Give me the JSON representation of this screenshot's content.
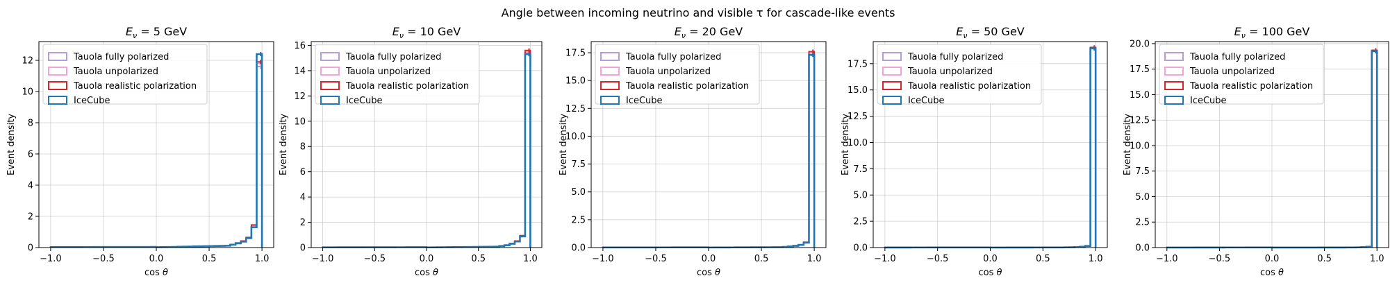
{
  "figure_title": "Angle between incoming neutrino and visible τ for cascade-like events",
  "colors": {
    "Tauola fully polarized": "#b39ddb",
    "Tauola unpolarized": "#f4a3d9",
    "Tauola realistic polarization": "#d62728",
    "IceCube": "#1f77b4"
  },
  "chart_data": [
    {
      "type": "histogram-step",
      "title_prefix": "E",
      "title_sub": "ν",
      "title_value": " = 5 GeV",
      "xlabel": "cos θ",
      "ylabel": "Event density",
      "xlim": [
        -1.0,
        1.0
      ],
      "ylim": [
        0,
        13.2
      ],
      "xticks": [
        -1.0,
        -0.5,
        0.0,
        0.5,
        1.0
      ],
      "xtick_labels": [
        "−1.0",
        "−0.5",
        "0.0",
        "0.5",
        "1.0"
      ],
      "yticks": [
        0,
        2,
        4,
        6,
        8,
        10,
        12
      ],
      "ytick_labels": [
        "0",
        "2",
        "4",
        "6",
        "8",
        "10",
        "12"
      ],
      "legend": [
        "Tauola fully polarized",
        "Tauola unpolarized",
        "Tauola realistic polarization",
        "IceCube"
      ],
      "bin_edges": [
        0.7,
        0.75,
        0.8,
        0.85,
        0.9,
        0.95,
        0.975,
        1.0
      ],
      "series": [
        {
          "name": "Tauola fully polarized",
          "values": [
            0.18,
            0.26,
            0.38,
            0.6,
            1.4,
            3.2,
            11.6
          ]
        },
        {
          "name": "Tauola unpolarized",
          "values": [
            0.2,
            0.28,
            0.4,
            0.62,
            1.35,
            3.1,
            11.8
          ]
        },
        {
          "name": "Tauola realistic polarization",
          "values": [
            0.2,
            0.3,
            0.42,
            0.65,
            1.45,
            3.35,
            11.9
          ]
        },
        {
          "name": "IceCube",
          "values": [
            0.18,
            0.27,
            0.38,
            0.6,
            1.3,
            2.9,
            12.4
          ]
        }
      ],
      "low_tail": 0.03,
      "mid_tail": 0.1
    },
    {
      "type": "histogram-step",
      "title_prefix": "E",
      "title_sub": "ν",
      "title_value": " = 10 GeV",
      "xlabel": "cos θ",
      "ylabel": "Event density",
      "xlim": [
        -1.0,
        1.0
      ],
      "ylim": [
        0,
        16.3
      ],
      "xticks": [
        -1.0,
        -0.5,
        0.0,
        0.5,
        1.0
      ],
      "xtick_labels": [
        "−1.0",
        "−0.5",
        "0.0",
        "0.5",
        "1.0"
      ],
      "yticks": [
        0,
        2,
        4,
        6,
        8,
        10,
        12,
        14,
        16
      ],
      "ytick_labels": [
        "0",
        "2",
        "4",
        "6",
        "8",
        "10",
        "12",
        "14",
        "16"
      ],
      "legend": [
        "Tauola fully polarized",
        "Tauola unpolarized",
        "Tauola realistic polarization",
        "IceCube"
      ],
      "bin_edges": [
        0.7,
        0.75,
        0.8,
        0.85,
        0.9,
        0.95,
        0.975,
        1.0
      ],
      "series": [
        {
          "name": "Tauola fully polarized",
          "values": [
            0.12,
            0.18,
            0.3,
            0.5,
            0.9,
            2.0,
            15.4
          ]
        },
        {
          "name": "Tauola unpolarized",
          "values": [
            0.12,
            0.18,
            0.3,
            0.5,
            0.9,
            2.0,
            15.5
          ]
        },
        {
          "name": "Tauola realistic polarization",
          "values": [
            0.13,
            0.2,
            0.32,
            0.52,
            0.95,
            2.1,
            15.6
          ]
        },
        {
          "name": "IceCube",
          "values": [
            0.12,
            0.18,
            0.3,
            0.48,
            0.88,
            1.9,
            15.3
          ]
        }
      ],
      "low_tail": 0.02,
      "mid_tail": 0.06
    },
    {
      "type": "histogram-step",
      "title_prefix": "E",
      "title_sub": "ν",
      "title_value": " = 20 GeV",
      "xlabel": "cos θ",
      "ylabel": "Event density",
      "xlim": [
        -1.0,
        1.0
      ],
      "ylim": [
        0,
        18.5
      ],
      "xticks": [
        -1.0,
        -0.5,
        0.0,
        0.5,
        1.0
      ],
      "xtick_labels": [
        "−1.0",
        "−0.5",
        "0.0",
        "0.5",
        "1.0"
      ],
      "yticks": [
        0,
        2.5,
        5.0,
        7.5,
        10.0,
        12.5,
        15.0,
        17.5
      ],
      "ytick_labels": [
        "0.0",
        "2.5",
        "5.0",
        "7.5",
        "10.0",
        "12.5",
        "15.0",
        "17.5"
      ],
      "legend": [
        "Tauola fully polarized",
        "Tauola unpolarized",
        "Tauola realistic polarization",
        "IceCube"
      ],
      "bin_edges": [
        0.7,
        0.75,
        0.8,
        0.85,
        0.9,
        0.95,
        0.975,
        1.0
      ],
      "series": [
        {
          "name": "Tauola fully polarized",
          "values": [
            0.06,
            0.1,
            0.16,
            0.25,
            0.45,
            1.1,
            17.4
          ]
        },
        {
          "name": "Tauola unpolarized",
          "values": [
            0.06,
            0.1,
            0.16,
            0.25,
            0.45,
            1.1,
            17.4
          ]
        },
        {
          "name": "Tauola realistic polarization",
          "values": [
            0.06,
            0.1,
            0.16,
            0.26,
            0.48,
            1.15,
            17.6
          ]
        },
        {
          "name": "IceCube",
          "values": [
            0.06,
            0.1,
            0.15,
            0.24,
            0.44,
            1.05,
            17.3
          ]
        }
      ],
      "low_tail": 0.01,
      "mid_tail": 0.03
    },
    {
      "type": "histogram-step",
      "title_prefix": "E",
      "title_sub": "ν",
      "title_value": " = 50 GeV",
      "xlabel": "cos θ",
      "ylabel": "Event density",
      "xlim": [
        -1.0,
        1.0
      ],
      "ylim": [
        0,
        19.6
      ],
      "xticks": [
        -1.0,
        -0.5,
        0.0,
        0.5,
        1.0
      ],
      "xtick_labels": [
        "−1.0",
        "−0.5",
        "0.0",
        "0.5",
        "1.0"
      ],
      "yticks": [
        0,
        2.5,
        5.0,
        7.5,
        10.0,
        12.5,
        15.0,
        17.5
      ],
      "ytick_labels": [
        "0.0",
        "2.5",
        "5.0",
        "7.5",
        "10.0",
        "12.5",
        "15.0",
        "17.5"
      ],
      "legend": [
        "Tauola fully polarized",
        "Tauola unpolarized",
        "Tauola realistic polarization",
        "IceCube"
      ],
      "bin_edges": [
        0.7,
        0.75,
        0.8,
        0.85,
        0.9,
        0.95,
        0.975,
        1.0
      ],
      "series": [
        {
          "name": "Tauola fully polarized",
          "values": [
            0.02,
            0.03,
            0.05,
            0.08,
            0.15,
            0.4,
            19.0
          ]
        },
        {
          "name": "Tauola unpolarized",
          "values": [
            0.02,
            0.03,
            0.05,
            0.08,
            0.15,
            0.4,
            19.0
          ]
        },
        {
          "name": "Tauola realistic polarization",
          "values": [
            0.02,
            0.03,
            0.05,
            0.08,
            0.16,
            0.42,
            19.05
          ]
        },
        {
          "name": "IceCube",
          "values": [
            0.02,
            0.03,
            0.05,
            0.08,
            0.15,
            0.4,
            18.95
          ]
        }
      ],
      "low_tail": 0.005,
      "mid_tail": 0.01
    },
    {
      "type": "histogram-step",
      "title_prefix": "E",
      "title_sub": "ν",
      "title_value": " = 100 GeV",
      "xlabel": "cos θ",
      "ylabel": "Event density",
      "xlim": [
        -1.0,
        1.0
      ],
      "ylim": [
        0,
        20.2
      ],
      "xticks": [
        -1.0,
        -0.5,
        0.0,
        0.5,
        1.0
      ],
      "xtick_labels": [
        "−1.0",
        "−0.5",
        "0.0",
        "0.5",
        "1.0"
      ],
      "yticks": [
        0,
        2.5,
        5.0,
        7.5,
        10.0,
        12.5,
        15.0,
        17.5,
        20.0
      ],
      "ytick_labels": [
        "0.0",
        "2.5",
        "5.0",
        "7.5",
        "10.0",
        "12.5",
        "15.0",
        "17.5",
        "20.0"
      ],
      "legend": [
        "Tauola fully polarized",
        "Tauola unpolarized",
        "Tauola realistic polarization",
        "IceCube"
      ],
      "bin_edges": [
        0.7,
        0.75,
        0.8,
        0.85,
        0.9,
        0.95,
        0.975,
        1.0
      ],
      "series": [
        {
          "name": "Tauola fully polarized",
          "values": [
            0.01,
            0.015,
            0.02,
            0.04,
            0.08,
            0.2,
            19.3
          ]
        },
        {
          "name": "Tauola unpolarized",
          "values": [
            0.01,
            0.015,
            0.02,
            0.04,
            0.08,
            0.2,
            19.3
          ]
        },
        {
          "name": "Tauola realistic polarization",
          "values": [
            0.01,
            0.015,
            0.02,
            0.04,
            0.08,
            0.2,
            19.35
          ]
        },
        {
          "name": "IceCube",
          "values": [
            0.01,
            0.015,
            0.02,
            0.04,
            0.08,
            0.2,
            19.25
          ]
        }
      ],
      "low_tail": 0.002,
      "mid_tail": 0.005
    }
  ]
}
